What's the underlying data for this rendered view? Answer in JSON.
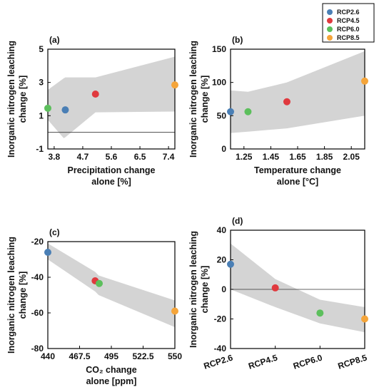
{
  "legend": [
    {
      "name": "RCP2.6",
      "color": "#4a7fb5"
    },
    {
      "name": "RCP4.5",
      "color": "#e0393e"
    },
    {
      "name": "RCP6.0",
      "color": "#5cbf5c"
    },
    {
      "name": "RCP8.5",
      "color": "#f5a53a"
    }
  ],
  "band_color": "#d4d4d4",
  "chart_data": [
    {
      "type": "scatter",
      "label": "(a)",
      "xlabel": [
        "Precipitation change",
        "alone [%]"
      ],
      "ylabel": [
        "Inorganic nitrogen leaching",
        "change [%]"
      ],
      "xlim": [
        3.6,
        7.6
      ],
      "ylim": [
        -1,
        5
      ],
      "xticks": [
        3.8,
        4.7,
        5.6,
        6.5,
        7.4
      ],
      "xtick_labels": [
        "3.8",
        "4.7",
        "5.6",
        "6.5",
        "7.4"
      ],
      "yticks": [
        -1,
        1,
        3,
        5
      ],
      "ytick_labels": [
        "-1",
        "1",
        "3",
        "5"
      ],
      "zero_line": 0,
      "band": {
        "x": [
          3.6,
          4.1,
          4.15,
          5.1,
          7.6
        ],
        "upper": [
          2.55,
          3.25,
          3.3,
          3.3,
          4.55
        ],
        "lower": [
          0.75,
          -0.35,
          -0.3,
          1.2,
          1.25
        ]
      },
      "points": [
        {
          "series": "RCP2.6",
          "x": 4.15,
          "y": 1.35
        },
        {
          "series": "RCP4.5",
          "x": 5.1,
          "y": 2.3
        },
        {
          "series": "RCP6.0",
          "x": 3.6,
          "y": 1.45
        },
        {
          "series": "RCP8.5",
          "x": 7.6,
          "y": 2.85
        }
      ]
    },
    {
      "type": "scatter",
      "label": "(b)",
      "xlabel": [
        "Temperature change",
        "alone [°C]"
      ],
      "ylabel": [
        "Inorganic nitrogen leaching",
        "change [%]"
      ],
      "xlim": [
        1.15,
        2.15
      ],
      "ylim": [
        0,
        150
      ],
      "xticks": [
        1.25,
        1.45,
        1.65,
        1.85,
        2.05
      ],
      "xtick_labels": [
        "1.25",
        "1.45",
        "1.65",
        "1.85",
        "2.05"
      ],
      "yticks": [
        0,
        50,
        100,
        150
      ],
      "ytick_labels": [
        "0",
        "50",
        "100",
        "150"
      ],
      "band": {
        "x": [
          1.15,
          1.28,
          1.57,
          2.15
        ],
        "upper": [
          88,
          86,
          100,
          147
        ],
        "lower": [
          24,
          26,
          31,
          50
        ]
      },
      "points": [
        {
          "series": "RCP2.6",
          "x": 1.15,
          "y": 56
        },
        {
          "series": "RCP4.5",
          "x": 1.57,
          "y": 71
        },
        {
          "series": "RCP6.0",
          "x": 1.28,
          "y": 56
        },
        {
          "series": "RCP8.5",
          "x": 2.15,
          "y": 102
        }
      ]
    },
    {
      "type": "scatter",
      "label": "(c)",
      "xlabel": [
        "CO₂ change",
        "alone [ppm]"
      ],
      "ylabel": [
        "Inorganic nitrogen leaching",
        "change [%]"
      ],
      "xlim": [
        440,
        550
      ],
      "ylim": [
        -80,
        -20
      ],
      "xticks": [
        440,
        467.5,
        495,
        522.5,
        550
      ],
      "xtick_labels": [
        "440",
        "467.5",
        "495",
        "522.5",
        "550"
      ],
      "yticks": [
        -80,
        -60,
        -40,
        -20
      ],
      "ytick_labels": [
        "-80",
        "-60",
        "-40",
        "-20"
      ],
      "band": {
        "x": [
          440,
          481,
          484,
          550
        ],
        "upper": [
          -21,
          -37,
          -39,
          -53
        ],
        "lower": [
          -30,
          -48,
          -50,
          -68
        ]
      },
      "points": [
        {
          "series": "RCP2.6",
          "x": 440,
          "y": -26
        },
        {
          "series": "RCP4.5",
          "x": 481,
          "y": -42
        },
        {
          "series": "RCP6.0",
          "x": 484.5,
          "y": -43.5
        },
        {
          "series": "RCP8.5",
          "x": 550,
          "y": -59
        }
      ]
    },
    {
      "type": "scatter",
      "label": "(d)",
      "xlabel": [],
      "ylabel": [
        "Inorganic nitrogen leaching",
        "change [%]"
      ],
      "categories": [
        "RCP2.6",
        "RCP4.5",
        "RCP6.0",
        "RCP8.5"
      ],
      "xlim": [
        0,
        3
      ],
      "ylim": [
        -40,
        40
      ],
      "yticks": [
        -40,
        -20,
        0,
        20,
        40
      ],
      "ytick_labels": [
        "-40",
        "-20",
        "0",
        "20",
        "40"
      ],
      "zero_line": 0,
      "band": {
        "x": [
          0,
          1,
          2,
          3
        ],
        "upper": [
          31,
          7,
          -7,
          -12
        ],
        "lower": [
          0,
          -12,
          -23,
          -29
        ]
      },
      "points": [
        {
          "series": "RCP2.6",
          "x": 0,
          "y": 17
        },
        {
          "series": "RCP4.5",
          "x": 1,
          "y": 1
        },
        {
          "series": "RCP6.0",
          "x": 2,
          "y": -16
        },
        {
          "series": "RCP8.5",
          "x": 3,
          "y": -20
        }
      ]
    }
  ]
}
